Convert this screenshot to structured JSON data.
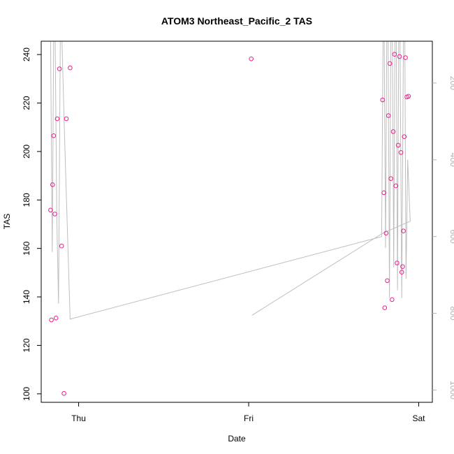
{
  "chart_data": {
    "type": "scatter",
    "title": "ATOM3 Northeast_Pacific_2 TAS",
    "xlabel": "Date",
    "ylabel": "TAS",
    "x_unit": "days since Thu 00:00",
    "xlim": [
      -0.22,
      2.08
    ],
    "ylim": [
      96.5,
      245.5
    ],
    "x_ticks": [
      {
        "value": 0,
        "label": "Thu"
      },
      {
        "value": 1,
        "label": "Fri"
      },
      {
        "value": 2,
        "label": "Sat"
      }
    ],
    "y_ticks": [
      100,
      120,
      140,
      160,
      180,
      200,
      220,
      240
    ],
    "y2_ticks": [
      200,
      400,
      600,
      800,
      1000
    ],
    "y2_lim": [
      1032,
      91
    ],
    "colors": {
      "points": "#e8208f",
      "line": "#bebebe",
      "right_axis": "#b3b3b3"
    },
    "series": [
      {
        "type": "scatter",
        "points": [
          {
            "x": -0.165,
            "y": 175.8
          },
          {
            "x": -0.16,
            "y": 130.5
          },
          {
            "x": -0.153,
            "y": 186.3
          },
          {
            "x": -0.147,
            "y": 206.5
          },
          {
            "x": -0.14,
            "y": 174.2
          },
          {
            "x": -0.133,
            "y": 131.3
          },
          {
            "x": -0.126,
            "y": 213.5
          },
          {
            "x": -0.113,
            "y": 234.1
          },
          {
            "x": -0.1,
            "y": 161.0
          },
          {
            "x": -0.086,
            "y": 100.2
          },
          {
            "x": -0.072,
            "y": 213.5
          },
          {
            "x": -0.05,
            "y": 234.5
          },
          {
            "x": 1.015,
            "y": 238.2
          },
          {
            "x": 1.787,
            "y": 221.3
          },
          {
            "x": 1.795,
            "y": 183.0
          },
          {
            "x": 1.8,
            "y": 135.5
          },
          {
            "x": 1.808,
            "y": 166.3
          },
          {
            "x": 1.815,
            "y": 146.7
          },
          {
            "x": 1.822,
            "y": 214.8
          },
          {
            "x": 1.83,
            "y": 236.3
          },
          {
            "x": 1.836,
            "y": 188.8
          },
          {
            "x": 1.843,
            "y": 138.9
          },
          {
            "x": 1.85,
            "y": 208.2
          },
          {
            "x": 1.858,
            "y": 240.1
          },
          {
            "x": 1.865,
            "y": 185.8
          },
          {
            "x": 1.872,
            "y": 154.0
          },
          {
            "x": 1.879,
            "y": 202.6
          },
          {
            "x": 1.887,
            "y": 239.2
          },
          {
            "x": 1.895,
            "y": 199.6
          },
          {
            "x": 1.9,
            "y": 150.2
          },
          {
            "x": 1.905,
            "y": 152.5
          },
          {
            "x": 1.91,
            "y": 167.2
          },
          {
            "x": 1.915,
            "y": 206.1
          },
          {
            "x": 1.922,
            "y": 238.7
          },
          {
            "x": 1.93,
            "y": 222.5
          },
          {
            "x": 1.94,
            "y": 222.8
          }
        ]
      },
      {
        "type": "line",
        "axis": "right",
        "points": [
          {
            "x": -0.165,
            "y": 91
          },
          {
            "x": -0.155,
            "y": 640
          },
          {
            "x": -0.147,
            "y": 91
          },
          {
            "x": -0.138,
            "y": 91
          },
          {
            "x": -0.128,
            "y": 555
          },
          {
            "x": -0.118,
            "y": 775
          },
          {
            "x": -0.108,
            "y": 91
          },
          {
            "x": -0.098,
            "y": 91
          },
          {
            "x": -0.082,
            "y": 350
          },
          {
            "x": -0.05,
            "y": 815
          },
          {
            "x": 1.782,
            "y": 600
          },
          {
            "x": 1.79,
            "y": 91
          },
          {
            "x": 1.797,
            "y": 91
          },
          {
            "x": 1.805,
            "y": 630
          },
          {
            "x": 1.812,
            "y": 91
          },
          {
            "x": 1.82,
            "y": 91
          },
          {
            "x": 1.828,
            "y": 760
          },
          {
            "x": 1.836,
            "y": 91
          },
          {
            "x": 1.845,
            "y": 91
          },
          {
            "x": 1.853,
            "y": 680
          },
          {
            "x": 1.86,
            "y": 91
          },
          {
            "x": 1.868,
            "y": 91
          },
          {
            "x": 1.875,
            "y": 740
          },
          {
            "x": 1.882,
            "y": 91
          },
          {
            "x": 1.89,
            "y": 91
          },
          {
            "x": 1.9,
            "y": 760
          },
          {
            "x": 1.91,
            "y": 91
          },
          {
            "x": 1.918,
            "y": 91
          },
          {
            "x": 1.925,
            "y": 710
          },
          {
            "x": 1.935,
            "y": 400
          },
          {
            "x": 1.95,
            "y": 560
          },
          {
            "x": 1.785,
            "y": 592
          },
          {
            "x": 1.02,
            "y": 805
          }
        ]
      }
    ]
  }
}
